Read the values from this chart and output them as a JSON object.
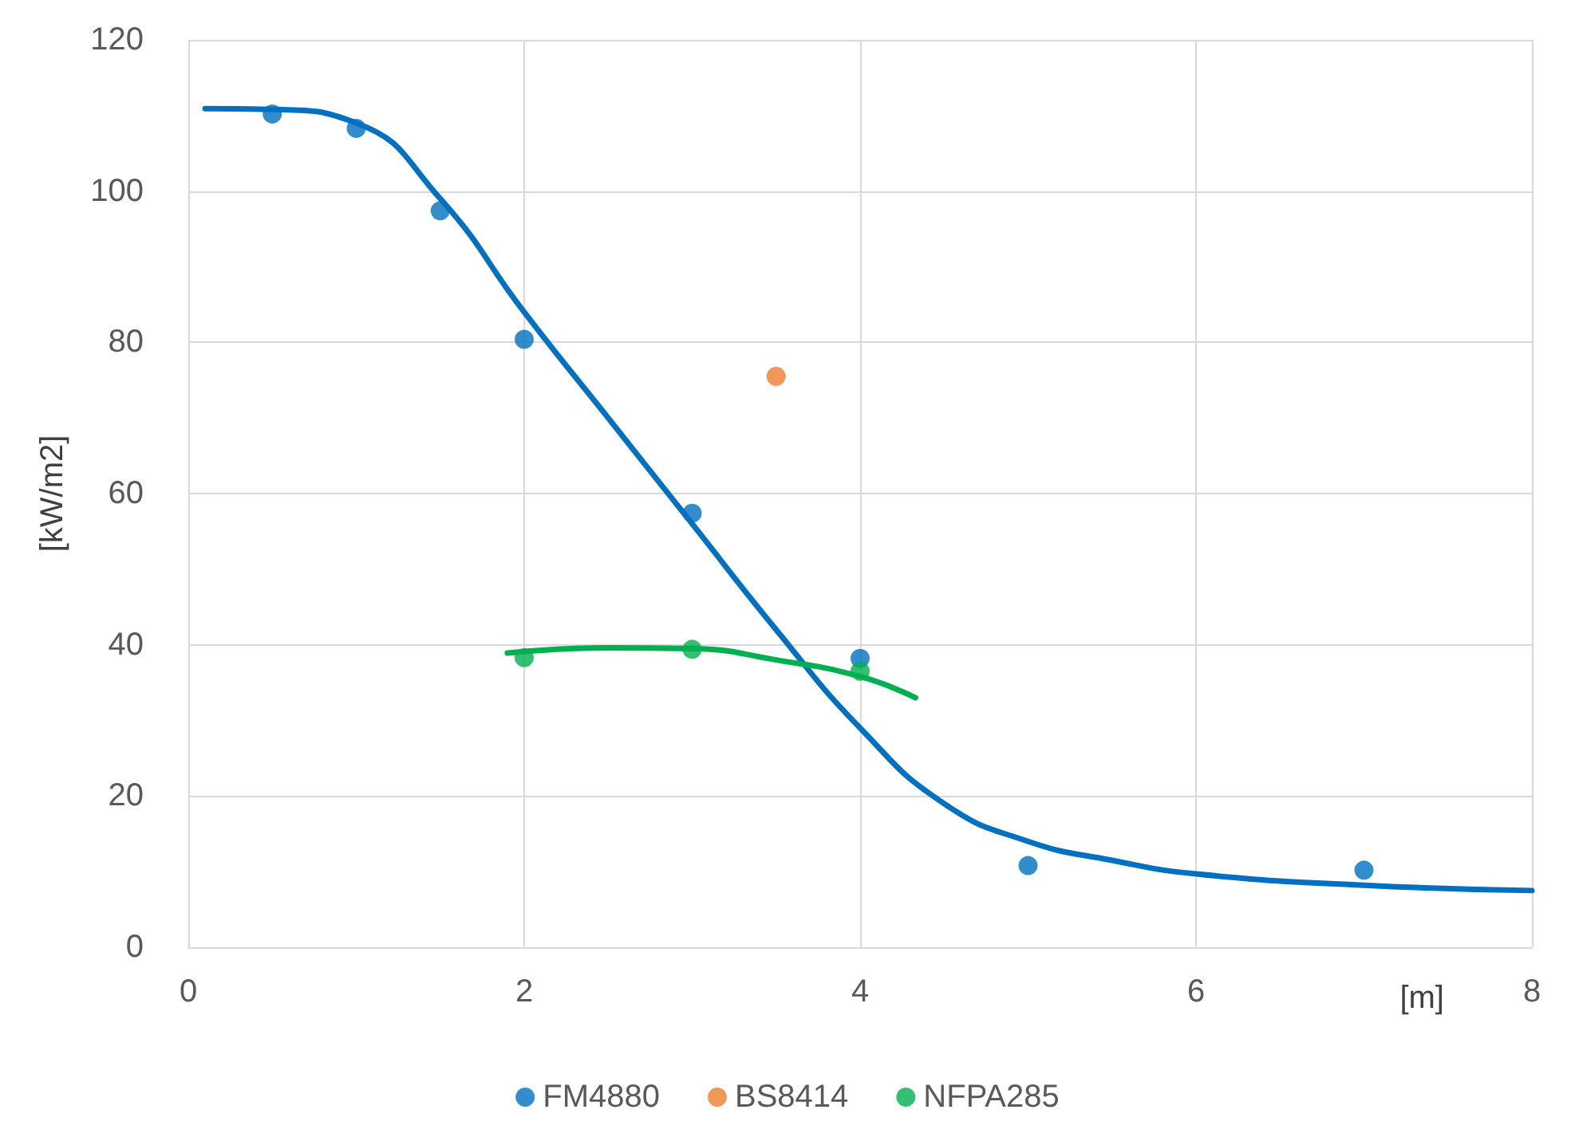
{
  "chart_data": {
    "type": "scatter",
    "xlabel": "[m]",
    "ylabel": "[kW/m2]",
    "xlim": [
      0,
      8
    ],
    "xticks": [
      0,
      2,
      4,
      6,
      8
    ],
    "ylim": [
      0,
      120
    ],
    "yticks": [
      0,
      20,
      40,
      60,
      80,
      100,
      120
    ],
    "grid": true,
    "legend": "bottom",
    "marker": "circle",
    "series": [
      {
        "name": "FM4880",
        "color": "#0070c0",
        "x": [
          0.5,
          1,
          1.5,
          2,
          3,
          4,
          5,
          7
        ],
        "values": [
          110.2,
          108.3,
          97.4,
          80.4,
          57.4,
          38.2,
          10.8,
          10.2
        ]
      },
      {
        "name": "BS8414",
        "color": "#ed7d31",
        "x": [
          3.5
        ],
        "values": [
          75.5
        ]
      },
      {
        "name": "NFPA285",
        "color": "#00b050",
        "x": [
          2,
          3,
          4
        ],
        "values": [
          38.3,
          39.4,
          36.5
        ]
      },
      {
        "type": "line",
        "color": "#0070c0",
        "line_style": "solid",
        "marker": "none",
        "x": [
          0.1,
          0.5,
          1,
          1.5,
          2,
          2.5,
          3,
          3.5,
          4,
          4.5,
          5,
          5.5,
          6,
          7,
          8
        ],
        "values": [
          110.9,
          110.8,
          109,
          99,
          84,
          70,
          56,
          42,
          29,
          19,
          14,
          11.5,
          9.7,
          8.2,
          7.5
        ]
      },
      {
        "type": "line",
        "color": "#00b050",
        "line_style": "solid",
        "marker": "none",
        "x": [
          1.9,
          2.5,
          3,
          3.5,
          4,
          4.33
        ],
        "values": [
          38.9,
          39.6,
          39.5,
          38,
          35.8,
          33
        ]
      }
    ]
  }
}
